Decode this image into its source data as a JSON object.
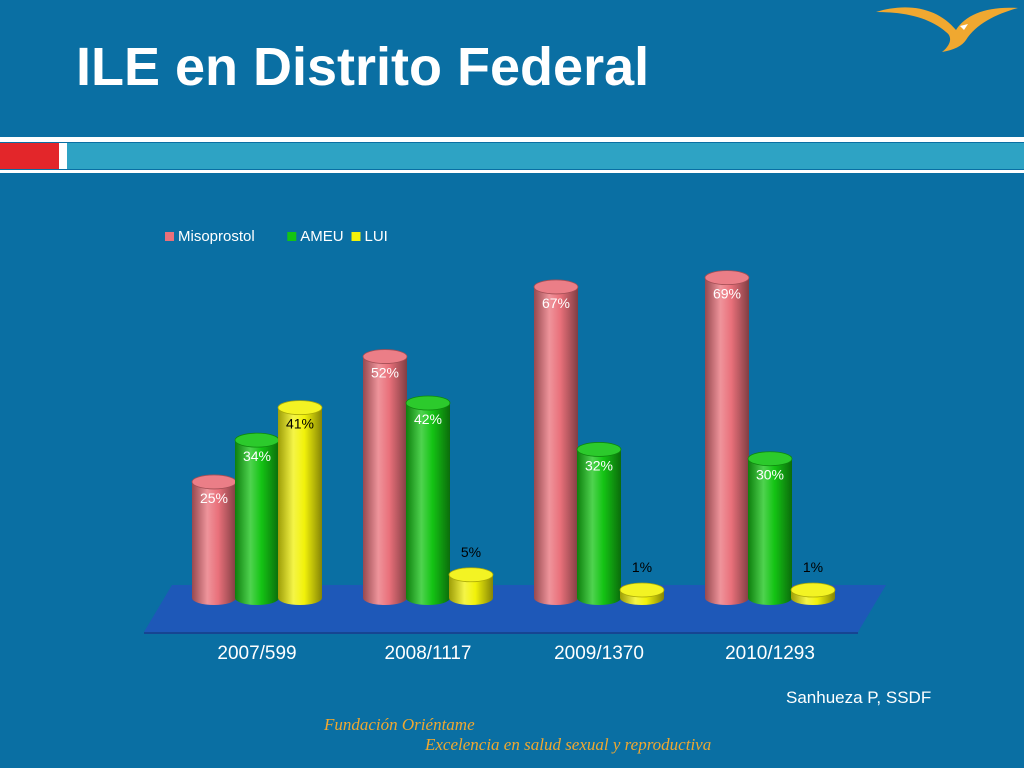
{
  "slide": {
    "title": "ILE en Distrito Federal",
    "credit": "Sanhueza P, SSDF",
    "organization": "Fundación Oriéntame",
    "tagline": "Excelencia en salud sexual y reproductiva",
    "logo_icon": "seagull-logo-icon",
    "colors": {
      "background": "#0a6fa3",
      "band_red": "#e3262a",
      "band_teal": "#2ea3c4",
      "footer_text": "#f0a830"
    }
  },
  "chart_data": {
    "type": "bar",
    "style": "3d-cylinder",
    "categories": [
      "2007/599",
      "2008/1117",
      "2009/1370",
      "2010/1293"
    ],
    "series": [
      {
        "name": "Misoprostol",
        "values": [
          25,
          52,
          67,
          69
        ],
        "labels": [
          "25%",
          "52%",
          "67%",
          "69%"
        ],
        "color": "#e9707a"
      },
      {
        "name": "AMEU",
        "values": [
          34,
          42,
          32,
          30
        ],
        "labels": [
          "34%",
          "42%",
          "32%",
          "30%"
        ],
        "color": "#14c414"
      },
      {
        "name": "LUI",
        "values": [
          41,
          5,
          1,
          1
        ],
        "labels": [
          "41%",
          "5%",
          "1%",
          "1%"
        ],
        "color": "#f2f20a"
      }
    ],
    "ylim": [
      0,
      70
    ],
    "grid": false,
    "legend": "top"
  }
}
